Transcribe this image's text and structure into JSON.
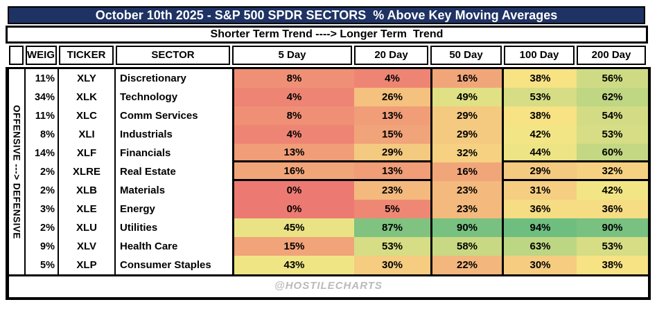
{
  "header": {
    "title": "October 10th 2025 - S&P 500 SPDR SECTORS  % Above Key Moving Averages",
    "subtitle": "Shorter Term Trend ----> Longer Term  Trend"
  },
  "side_label": "OFFENSIVE ---> DEFENSIVE",
  "watermark": "@HOSTILECHARTS",
  "columns": [
    "",
    "WEIGHT",
    "TICKER",
    "SECTOR",
    "5 Day",
    "20 Day",
    "50 Day",
    "100 Day",
    "200 Day"
  ],
  "colors": {
    "title_bg": "#1E3263",
    "title_text": "#FFFFFF",
    "border": "#000000",
    "watermark_text": "#BABABA",
    "scale_min_red": "#ED7A72",
    "scale_mid_yellow": "#F7E785",
    "scale_max_green": "#6EBE80"
  },
  "chart_data": {
    "type": "heatmap",
    "title": "October 10th 2025 - S&P 500 SPDR SECTORS  % Above Key Moving Averages",
    "subtitle": "Shorter Term Trend ----> Longer Term  Trend",
    "value_format": "percent",
    "columns": [
      "5 Day",
      "20 Day",
      "50 Day",
      "100 Day",
      "200 Day"
    ],
    "colorscale": {
      "min_value": 0,
      "min_color": "#ED7A72",
      "mid_value": 40,
      "mid_color": "#F7E785",
      "max_value": 94,
      "max_color": "#6EBE80"
    },
    "rows": [
      {
        "weight": "11%",
        "ticker": "XLY",
        "sector": "Discretionary",
        "values": [
          8,
          4,
          16,
          38,
          56
        ]
      },
      {
        "weight": "34%",
        "ticker": "XLK",
        "sector": "Technology",
        "values": [
          4,
          26,
          49,
          53,
          62
        ]
      },
      {
        "weight": "11%",
        "ticker": "XLC",
        "sector": "Comm Services",
        "values": [
          8,
          13,
          29,
          38,
          54
        ]
      },
      {
        "weight": "8%",
        "ticker": "XLI",
        "sector": "Industrials",
        "values": [
          4,
          15,
          29,
          42,
          53
        ]
      },
      {
        "weight": "14%",
        "ticker": "XLF",
        "sector": "Financials",
        "values": [
          13,
          29,
          32,
          44,
          60
        ]
      },
      {
        "weight": "2%",
        "ticker": "XLRE",
        "sector": "Real Estate",
        "values": [
          16,
          13,
          16,
          29,
          32
        ]
      },
      {
        "weight": "2%",
        "ticker": "XLB",
        "sector": "Materials",
        "values": [
          0,
          23,
          23,
          31,
          42
        ]
      },
      {
        "weight": "3%",
        "ticker": "XLE",
        "sector": "Energy",
        "values": [
          0,
          5,
          23,
          36,
          36
        ]
      },
      {
        "weight": "2%",
        "ticker": "XLU",
        "sector": "Utilities",
        "values": [
          45,
          87,
          90,
          94,
          90
        ]
      },
      {
        "weight": "9%",
        "ticker": "XLV",
        "sector": "Health Care",
        "values": [
          15,
          53,
          58,
          63,
          53
        ]
      },
      {
        "weight": "5%",
        "ticker": "XLP",
        "sector": "Consumer Staples",
        "values": [
          43,
          30,
          22,
          30,
          38
        ]
      }
    ]
  }
}
